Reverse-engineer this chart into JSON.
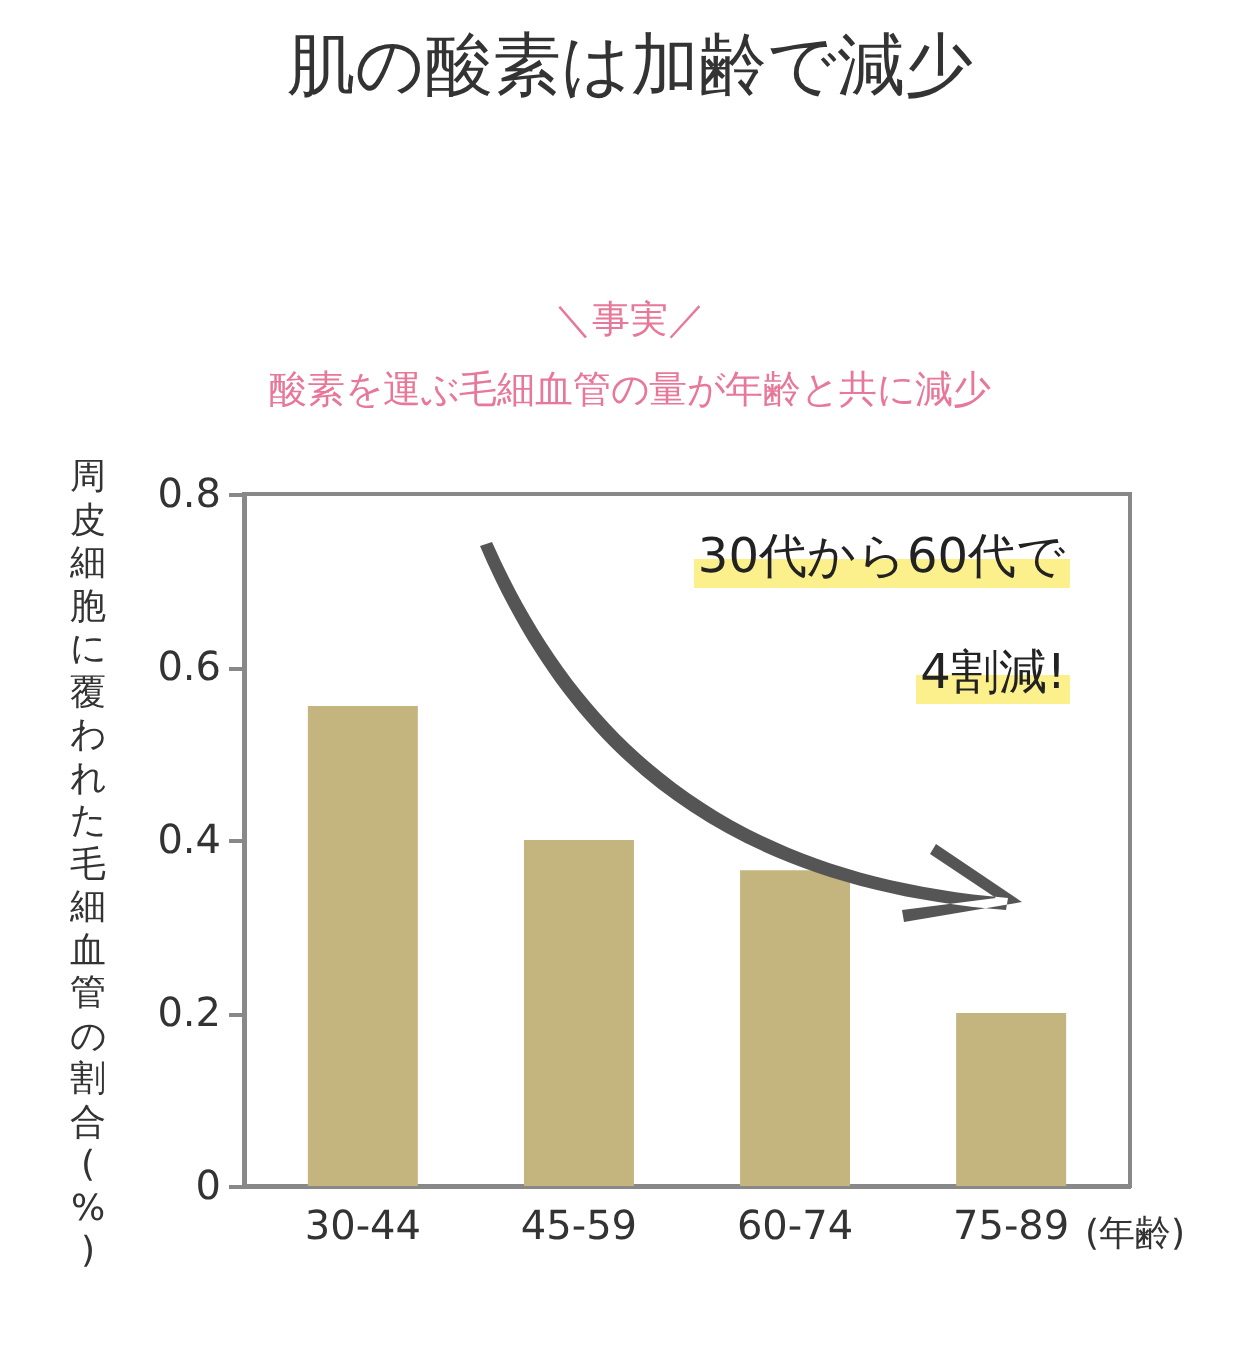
{
  "chart_data": {
    "type": "bar",
    "title": "肌の酸素は加齢で減少",
    "subtitle": "＼事実／",
    "xlabel": "(年齢)",
    "ylabel": "周皮細胞に覆われた毛細血管の割合(%)",
    "categories": [
      "30-44",
      "45-59",
      "60-74",
      "75-89"
    ],
    "values": [
      0.555,
      0.4,
      0.365,
      0.2
    ],
    "color": "#c4b47e",
    "ylim": [
      0,
      0.8
    ],
    "yticks": [
      0,
      0.2,
      0.4,
      0.6,
      0.8
    ],
    "grid": false,
    "annotations": [
      "酸素を運ぶ毛細血管の量が年齢と共に減少",
      "30代から60代で",
      "4割減!"
    ]
  }
}
